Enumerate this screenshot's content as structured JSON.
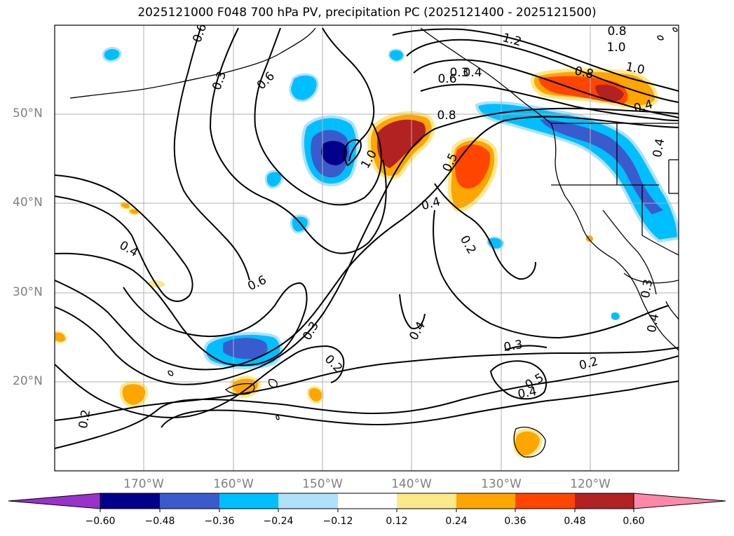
{
  "title": "2025121000 F048 700 hPa PV, precipitation PC (2025121400 - 2025121500)",
  "lat_labels": [
    "50°N",
    "40°N",
    "30°N",
    "20°N"
  ],
  "lon_labels": [
    "170°W",
    "160°W",
    "150°W",
    "140°W",
    "130°W",
    "120°W"
  ],
  "contour_labels": [
    "0.6",
    "0.3",
    "0.6",
    "1.2",
    "0.8",
    "1.0",
    "0.8",
    "0.6",
    "0.3",
    "0.8",
    "1.0",
    "0.4",
    "0.4",
    "0.4",
    "1.0",
    "0.5",
    "0.4",
    "0.2",
    "0.4",
    "0.6",
    "0.3",
    "0.2",
    "0.4",
    "0.3",
    "0.5",
    "0.4",
    "0.2",
    "0.2",
    "0.3",
    "0.4"
  ],
  "colorbar": {
    "ticks": [
      "−0.60",
      "−0.48",
      "−0.36",
      "−0.24",
      "−0.12",
      "0.12",
      "0.24",
      "0.36",
      "0.48",
      "0.60"
    ],
    "colors": [
      "#9932cc",
      "#00008b",
      "#3a5bcd",
      "#00bfff",
      "#afe1fa",
      "#ffffff",
      "#fbe98a",
      "#ffa500",
      "#ff4500",
      "#b22222",
      "#ff88aa"
    ]
  }
}
